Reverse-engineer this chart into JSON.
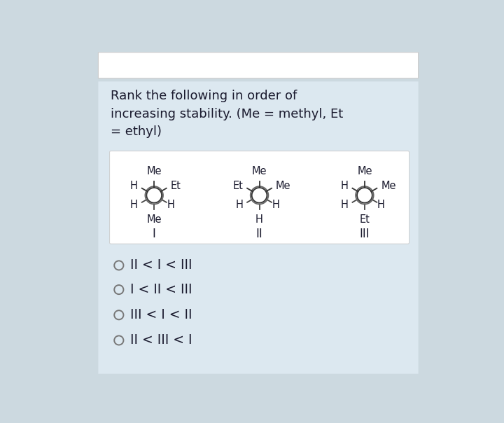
{
  "bg_outer": "#ccd9e0",
  "bg_card": "#dce8f0",
  "bg_inner": "#ffffff",
  "bg_topbar": "#ffffff",
  "title_text": "Rank the following in order of\nincreasing stability. (Me = methyl, Et\n= ethyl)",
  "title_fontsize": 13.0,
  "title_color": "#1a1a2e",
  "answer_options": [
    "II < I < III",
    "I < II < III",
    "III < I < II"
  ],
  "radio_color": "#777777",
  "option_fontsize": 13.5,
  "molecule_label_fontsize": 10.5,
  "roman_fontsize": 12,
  "mol1": {
    "top": "Me",
    "top_right": "Et",
    "top_left": "H",
    "bot_left": "H",
    "bot": "Me",
    "bot_right": "H",
    "label": "I"
  },
  "mol2": {
    "top": "Me",
    "top_right": "Me",
    "top_left": "Et",
    "bot_left": "H",
    "bot": "H",
    "bot_right": "H",
    "label": "II"
  },
  "mol3": {
    "top": "Me",
    "top_right": "Me",
    "top_left": "H",
    "bot_left": "H",
    "bot": "Et",
    "bot_right": "H",
    "label": "III"
  }
}
